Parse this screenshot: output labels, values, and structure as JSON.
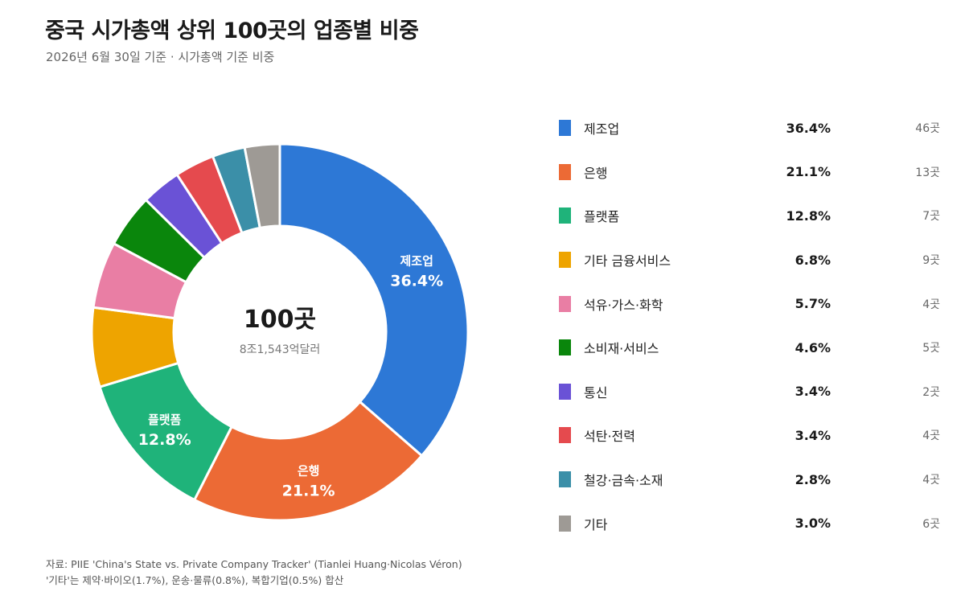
{
  "header": {
    "title": "중국 시가총액 상위 100곳의 업종별 비중",
    "subtitle": "2026년 6월 30일 기준 · 시가총액 기준 비중"
  },
  "chart_data": {
    "type": "pie",
    "donut": true,
    "center_value": "100곳",
    "center_sub": "8조1,543억달러",
    "slices": [
      {
        "name": "제조업",
        "pct_label": "36.4%",
        "value": 36.4,
        "count": "46곳",
        "color": "#2d78d6",
        "slice_label": true
      },
      {
        "name": "은행",
        "pct_label": "21.1%",
        "value": 21.1,
        "count": "13곳",
        "color": "#ec6a35",
        "slice_label": true
      },
      {
        "name": "플랫폼",
        "pct_label": "12.8%",
        "value": 12.8,
        "count": "7곳",
        "color": "#1fb37a",
        "slice_label": true
      },
      {
        "name": "기타 금융서비스",
        "pct_label": "6.8%",
        "value": 6.8,
        "count": "9곳",
        "color": "#eea400",
        "slice_label": false
      },
      {
        "name": "석유·가스·화학",
        "pct_label": "5.7%",
        "value": 5.7,
        "count": "4곳",
        "color": "#e97ea4",
        "slice_label": false
      },
      {
        "name": "소비재·서비스",
        "pct_label": "4.6%",
        "value": 4.6,
        "count": "5곳",
        "color": "#0a860c",
        "slice_label": false
      },
      {
        "name": "통신",
        "pct_label": "3.4%",
        "value": 3.4,
        "count": "2곳",
        "color": "#6a52d6",
        "slice_label": false
      },
      {
        "name": "석탄·전력",
        "pct_label": "3.4%",
        "value": 3.4,
        "count": "4곳",
        "color": "#e54a4e",
        "slice_label": false
      },
      {
        "name": "철강·금속·소재",
        "pct_label": "2.8%",
        "value": 2.8,
        "count": "4곳",
        "color": "#3b8fa8",
        "slice_label": false
      },
      {
        "name": "기타",
        "pct_label": "3.0%",
        "value": 3.0,
        "count": "6곳",
        "color": "#9e9a95",
        "slice_label": false
      }
    ]
  },
  "footnote": {
    "line1": "자료: PIIE 'China's State vs. Private Company Tracker' (Tianlei Huang·Nicolas Véron)",
    "line2": "'기타'는 제약·바이오(1.7%), 운송·물류(0.8%), 복합기업(0.5%) 합산"
  }
}
